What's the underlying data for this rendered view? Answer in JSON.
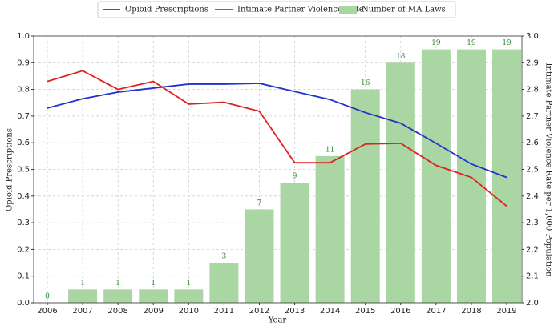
{
  "chart_data": {
    "type": "combo",
    "xlabel": "Year",
    "ylabel": "Opioid Prescriptions",
    "y2label": "Intimate Partner Violence Rate per 1,000 Population",
    "categories": [
      "2006",
      "2007",
      "2008",
      "2009",
      "2010",
      "2011",
      "2012",
      "2013",
      "2014",
      "2015",
      "2016",
      "2017",
      "2018",
      "2019"
    ],
    "series": [
      {
        "name": "Opioid Prescriptions",
        "type": "line",
        "color": "#2233cc",
        "axis": "y",
        "values": [
          0.73,
          0.765,
          0.79,
          0.805,
          0.82,
          0.82,
          0.823,
          0.792,
          0.762,
          0.713,
          0.673,
          0.598,
          0.52,
          0.47
        ]
      },
      {
        "name": "Intimate Partner Violence Rate",
        "type": "line",
        "color": "#dd2222",
        "axis": "y2",
        "values": [
          2.83,
          2.87,
          2.8,
          2.83,
          2.745,
          2.752,
          2.718,
          2.525,
          2.525,
          2.595,
          2.598,
          2.515,
          2.47,
          2.362
        ]
      },
      {
        "name": "Number of MA Laws",
        "type": "bar",
        "color": "#a9d6a2",
        "axis": "y3",
        "values": [
          0,
          1,
          1,
          1,
          1,
          3,
          7,
          9,
          11,
          16,
          18,
          19,
          19,
          19
        ]
      }
    ],
    "ylim": [
      0,
      1
    ],
    "y2lim": [
      2,
      3
    ],
    "y3lim": [
      0,
      20
    ],
    "yticks": [
      {
        "value": 0,
        "label": "0.0"
      },
      {
        "value": 0.1,
        "label": "0.1"
      },
      {
        "value": 0.2,
        "label": "0.2"
      },
      {
        "value": 0.3,
        "label": "0.3"
      },
      {
        "value": 0.4,
        "label": "0.4"
      },
      {
        "value": 0.5,
        "label": "0.5"
      },
      {
        "value": 0.6,
        "label": "0.6"
      },
      {
        "value": 0.7,
        "label": "0.7"
      },
      {
        "value": 0.8,
        "label": "0.8"
      },
      {
        "value": 0.9,
        "label": "0.9"
      },
      {
        "value": 1,
        "label": "1.0"
      }
    ],
    "y2ticks": [
      {
        "value": 2,
        "label": "2.0"
      },
      {
        "value": 2.1,
        "label": "2.1"
      },
      {
        "value": 2.2,
        "label": "2.2"
      },
      {
        "value": 2.3,
        "label": "2.3"
      },
      {
        "value": 2.4,
        "label": "2.4"
      },
      {
        "value": 2.5,
        "label": "2.5"
      },
      {
        "value": 2.6,
        "label": "2.6"
      },
      {
        "value": 2.7,
        "label": "2.7"
      },
      {
        "value": 2.8,
        "label": "2.8"
      },
      {
        "value": 2.9,
        "label": "2.9"
      },
      {
        "value": 3,
        "label": "3.0"
      }
    ],
    "grid": true
  }
}
